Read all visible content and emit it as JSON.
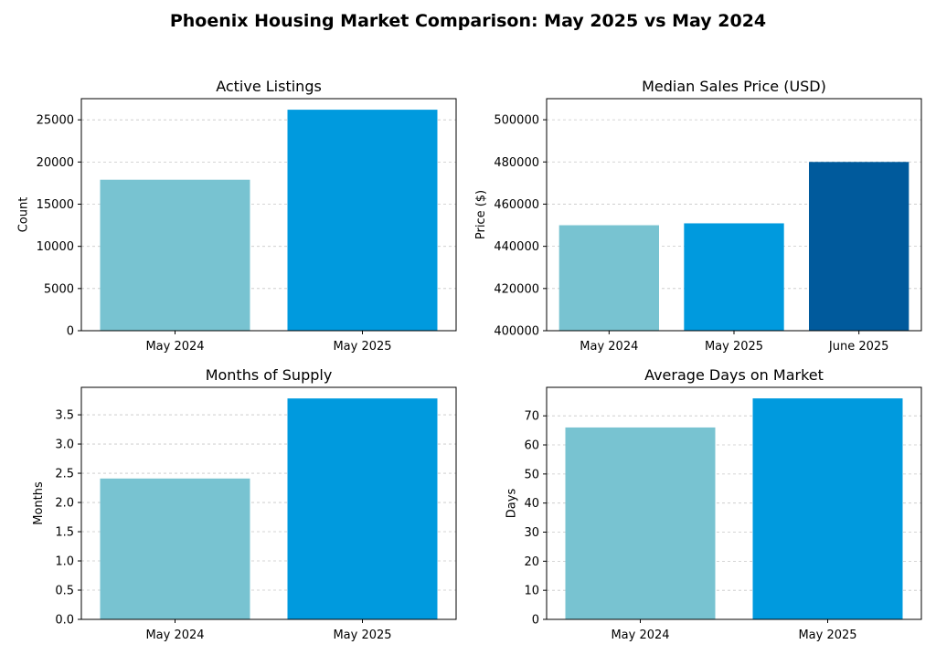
{
  "figure_title": "Phoenix Housing Market Comparison: May 2025 vs May 2024",
  "chart_data": [
    {
      "type": "bar",
      "title": "Active Listings",
      "xlabel": "",
      "ylabel": "Count",
      "categories": [
        "May 2024",
        "May 2025"
      ],
      "values": [
        17900,
        26200
      ],
      "colors": [
        "#78c3d1",
        "#009ade"
      ],
      "ylim": [
        0,
        27510
      ],
      "yticks": [
        0,
        5000,
        10000,
        15000,
        20000,
        25000
      ],
      "grid": "y"
    },
    {
      "type": "bar",
      "title": "Median Sales Price (USD)",
      "xlabel": "",
      "ylabel": "Price ($)",
      "categories": [
        "May 2024",
        "May 2025",
        "June 2025"
      ],
      "values": [
        450000,
        450900,
        480000
      ],
      "colors": [
        "#78c3d1",
        "#009ade",
        "#005a9c"
      ],
      "ylim": [
        400000,
        510000
      ],
      "yticks": [
        400000,
        420000,
        440000,
        460000,
        480000,
        500000
      ],
      "grid": "y"
    },
    {
      "type": "bar",
      "title": "Months of Supply",
      "xlabel": "",
      "ylabel": "Months",
      "categories": [
        "May 2024",
        "May 2025"
      ],
      "values": [
        2.41,
        3.78
      ],
      "colors": [
        "#78c3d1",
        "#009ade"
      ],
      "ylim": [
        0,
        3.97
      ],
      "yticks": [
        0.0,
        0.5,
        1.0,
        1.5,
        2.0,
        2.5,
        3.0,
        3.5
      ],
      "ytick_labels": [
        "0.0",
        "0.5",
        "1.0",
        "1.5",
        "2.0",
        "2.5",
        "3.0",
        "3.5"
      ],
      "grid": "y"
    },
    {
      "type": "bar",
      "title": "Average Days on Market",
      "xlabel": "",
      "ylabel": "Days",
      "categories": [
        "May 2024",
        "May 2025"
      ],
      "values": [
        66,
        76
      ],
      "colors": [
        "#78c3d1",
        "#009ade"
      ],
      "ylim": [
        0,
        79.8
      ],
      "yticks": [
        0,
        10,
        20,
        30,
        40,
        50,
        60,
        70
      ],
      "grid": "y"
    }
  ]
}
